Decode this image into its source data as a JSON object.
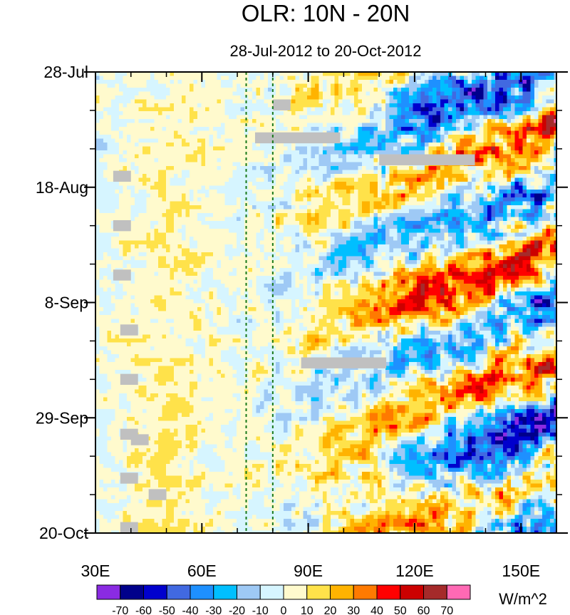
{
  "chart_data": {
    "type": "heatmap",
    "title": "OLR: 10N - 20N",
    "subtitle": "28-Jul-2012 to 20-Oct-2012",
    "x_label": "",
    "y_label": "",
    "x_range": [
      30,
      160
    ],
    "y_range": [
      "28-Jul",
      "20-Oct"
    ],
    "x_ticks": [
      {
        "value": 30,
        "label": "30E"
      },
      {
        "value": 60,
        "label": "60E"
      },
      {
        "value": 90,
        "label": "90E"
      },
      {
        "value": 120,
        "label": "120E"
      },
      {
        "value": 150,
        "label": "150E"
      }
    ],
    "y_ticks": [
      {
        "day": 0,
        "label": "28-Jul"
      },
      {
        "day": 21,
        "label": "18-Aug"
      },
      {
        "day": 42,
        "label": "8-Sep"
      },
      {
        "day": 63,
        "label": "29-Sep"
      },
      {
        "day": 84,
        "label": "20-Oct"
      }
    ],
    "reference_lines_lon": [
      72.5,
      80
    ],
    "units": "W/m^2",
    "levels": [
      -70,
      -60,
      -50,
      -40,
      -30,
      -20,
      -10,
      0,
      10,
      20,
      30,
      40,
      50,
      60,
      70
    ],
    "level_labels": [
      "-70",
      "-60",
      "-50",
      "-40",
      "-30",
      "-20",
      "-10",
      "0",
      "10",
      "20",
      "30",
      "40",
      "50",
      "60",
      "70"
    ],
    "colors": [
      "#8a2be2",
      "#00008b",
      "#0000cd",
      "#4169e1",
      "#1e90ff",
      "#00bfff",
      "#9ec9f5",
      "#d6f5ff",
      "#fffacd",
      "#ffe24a",
      "#ffb300",
      "#ff7a00",
      "#ff0000",
      "#cc0000",
      "#a52a2a",
      "#ff69b4"
    ],
    "missing_color": "#c0c0c0",
    "missing_data": [
      {
        "lon0": 80,
        "lon1": 85,
        "day0": 5,
        "day1": 7
      },
      {
        "lon0": 75,
        "lon1": 99,
        "day0": 11,
        "day1": 13
      },
      {
        "lon0": 110,
        "lon1": 137,
        "day0": 15,
        "day1": 17
      },
      {
        "lon0": 35,
        "lon1": 40,
        "day0": 18,
        "day1": 20
      },
      {
        "lon0": 35,
        "lon1": 40,
        "day0": 27,
        "day1": 29
      },
      {
        "lon0": 35,
        "lon1": 40,
        "day0": 36,
        "day1": 38
      },
      {
        "lon0": 37,
        "lon1": 42,
        "day0": 46,
        "day1": 48
      },
      {
        "lon0": 88,
        "lon1": 112,
        "day0": 52,
        "day1": 54
      },
      {
        "lon0": 37,
        "lon1": 42,
        "day0": 55,
        "day1": 57
      },
      {
        "lon0": 37,
        "lon1": 42,
        "day0": 65,
        "day1": 67
      },
      {
        "lon0": 40,
        "lon1": 45,
        "day0": 66,
        "day1": 68
      },
      {
        "lon0": 37,
        "lon1": 42,
        "day0": 73,
        "day1": 75
      },
      {
        "lon0": 45,
        "lon1": 50,
        "day0": 76,
        "day1": 78
      },
      {
        "lon0": 37,
        "lon1": 42,
        "day0": 82,
        "day1": 84
      }
    ]
  }
}
